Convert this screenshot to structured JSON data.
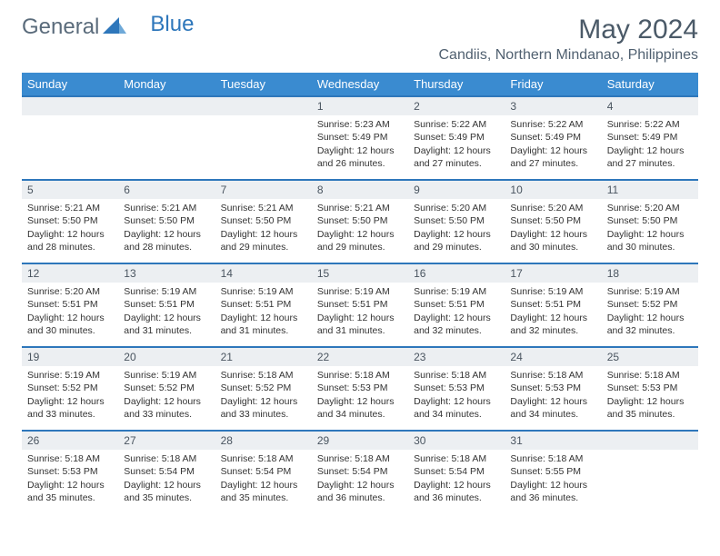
{
  "logo": {
    "part1": "General",
    "part2": "Blue"
  },
  "title": "May 2024",
  "location": "Candiis, Northern Mindanao, Philippines",
  "colors": {
    "header_bg": "#3a8bd0",
    "border": "#2e77bb",
    "daynum_bg": "#eceff2",
    "text": "#333333",
    "title_text": "#4b5a68"
  },
  "weekdays": [
    "Sunday",
    "Monday",
    "Tuesday",
    "Wednesday",
    "Thursday",
    "Friday",
    "Saturday"
  ],
  "weeks": [
    [
      null,
      null,
      null,
      {
        "n": "1",
        "sr": "5:23 AM",
        "ss": "5:49 PM",
        "dl": "12 hours and 26 minutes."
      },
      {
        "n": "2",
        "sr": "5:22 AM",
        "ss": "5:49 PM",
        "dl": "12 hours and 27 minutes."
      },
      {
        "n": "3",
        "sr": "5:22 AM",
        "ss": "5:49 PM",
        "dl": "12 hours and 27 minutes."
      },
      {
        "n": "4",
        "sr": "5:22 AM",
        "ss": "5:49 PM",
        "dl": "12 hours and 27 minutes."
      }
    ],
    [
      {
        "n": "5",
        "sr": "5:21 AM",
        "ss": "5:50 PM",
        "dl": "12 hours and 28 minutes."
      },
      {
        "n": "6",
        "sr": "5:21 AM",
        "ss": "5:50 PM",
        "dl": "12 hours and 28 minutes."
      },
      {
        "n": "7",
        "sr": "5:21 AM",
        "ss": "5:50 PM",
        "dl": "12 hours and 29 minutes."
      },
      {
        "n": "8",
        "sr": "5:21 AM",
        "ss": "5:50 PM",
        "dl": "12 hours and 29 minutes."
      },
      {
        "n": "9",
        "sr": "5:20 AM",
        "ss": "5:50 PM",
        "dl": "12 hours and 29 minutes."
      },
      {
        "n": "10",
        "sr": "5:20 AM",
        "ss": "5:50 PM",
        "dl": "12 hours and 30 minutes."
      },
      {
        "n": "11",
        "sr": "5:20 AM",
        "ss": "5:50 PM",
        "dl": "12 hours and 30 minutes."
      }
    ],
    [
      {
        "n": "12",
        "sr": "5:20 AM",
        "ss": "5:51 PM",
        "dl": "12 hours and 30 minutes."
      },
      {
        "n": "13",
        "sr": "5:19 AM",
        "ss": "5:51 PM",
        "dl": "12 hours and 31 minutes."
      },
      {
        "n": "14",
        "sr": "5:19 AM",
        "ss": "5:51 PM",
        "dl": "12 hours and 31 minutes."
      },
      {
        "n": "15",
        "sr": "5:19 AM",
        "ss": "5:51 PM",
        "dl": "12 hours and 31 minutes."
      },
      {
        "n": "16",
        "sr": "5:19 AM",
        "ss": "5:51 PM",
        "dl": "12 hours and 32 minutes."
      },
      {
        "n": "17",
        "sr": "5:19 AM",
        "ss": "5:51 PM",
        "dl": "12 hours and 32 minutes."
      },
      {
        "n": "18",
        "sr": "5:19 AM",
        "ss": "5:52 PM",
        "dl": "12 hours and 32 minutes."
      }
    ],
    [
      {
        "n": "19",
        "sr": "5:19 AM",
        "ss": "5:52 PM",
        "dl": "12 hours and 33 minutes."
      },
      {
        "n": "20",
        "sr": "5:19 AM",
        "ss": "5:52 PM",
        "dl": "12 hours and 33 minutes."
      },
      {
        "n": "21",
        "sr": "5:18 AM",
        "ss": "5:52 PM",
        "dl": "12 hours and 33 minutes."
      },
      {
        "n": "22",
        "sr": "5:18 AM",
        "ss": "5:53 PM",
        "dl": "12 hours and 34 minutes."
      },
      {
        "n": "23",
        "sr": "5:18 AM",
        "ss": "5:53 PM",
        "dl": "12 hours and 34 minutes."
      },
      {
        "n": "24",
        "sr": "5:18 AM",
        "ss": "5:53 PM",
        "dl": "12 hours and 34 minutes."
      },
      {
        "n": "25",
        "sr": "5:18 AM",
        "ss": "5:53 PM",
        "dl": "12 hours and 35 minutes."
      }
    ],
    [
      {
        "n": "26",
        "sr": "5:18 AM",
        "ss": "5:53 PM",
        "dl": "12 hours and 35 minutes."
      },
      {
        "n": "27",
        "sr": "5:18 AM",
        "ss": "5:54 PM",
        "dl": "12 hours and 35 minutes."
      },
      {
        "n": "28",
        "sr": "5:18 AM",
        "ss": "5:54 PM",
        "dl": "12 hours and 35 minutes."
      },
      {
        "n": "29",
        "sr": "5:18 AM",
        "ss": "5:54 PM",
        "dl": "12 hours and 36 minutes."
      },
      {
        "n": "30",
        "sr": "5:18 AM",
        "ss": "5:54 PM",
        "dl": "12 hours and 36 minutes."
      },
      {
        "n": "31",
        "sr": "5:18 AM",
        "ss": "5:55 PM",
        "dl": "12 hours and 36 minutes."
      },
      null
    ]
  ],
  "labels": {
    "sunrise": "Sunrise: ",
    "sunset": "Sunset: ",
    "daylight": "Daylight: "
  }
}
